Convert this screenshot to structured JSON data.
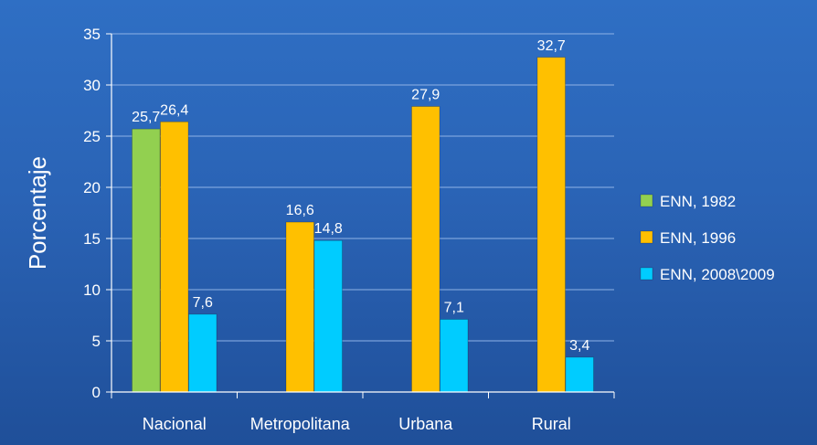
{
  "chart_data": {
    "type": "bar",
    "title": "",
    "xlabel": "",
    "ylabel": "Porcentaje",
    "ylim": [
      0,
      35
    ],
    "yticks": [
      0,
      5,
      10,
      15,
      20,
      25,
      30,
      35
    ],
    "grid": true,
    "legend_position": "right",
    "categories": [
      "Nacional",
      "Metropolitana",
      "Urbana",
      "Rural"
    ],
    "series": [
      {
        "name": "ENN, 1982",
        "color": "#92d050",
        "values": [
          25.7,
          null,
          null,
          null
        ],
        "labels": [
          "25,7",
          "",
          "",
          ""
        ]
      },
      {
        "name": "ENN, 1996",
        "color": "#ffc000",
        "values": [
          26.4,
          16.6,
          27.9,
          32.7
        ],
        "labels": [
          "26,4",
          "16,6",
          "27,9",
          "32,7"
        ]
      },
      {
        "name": "ENN, 2008\\2009",
        "color": "#00ccff",
        "values": [
          7.6,
          14.8,
          7.1,
          3.4
        ],
        "labels": [
          "7,6",
          "14,8",
          "7,1",
          "3,4"
        ]
      }
    ]
  }
}
